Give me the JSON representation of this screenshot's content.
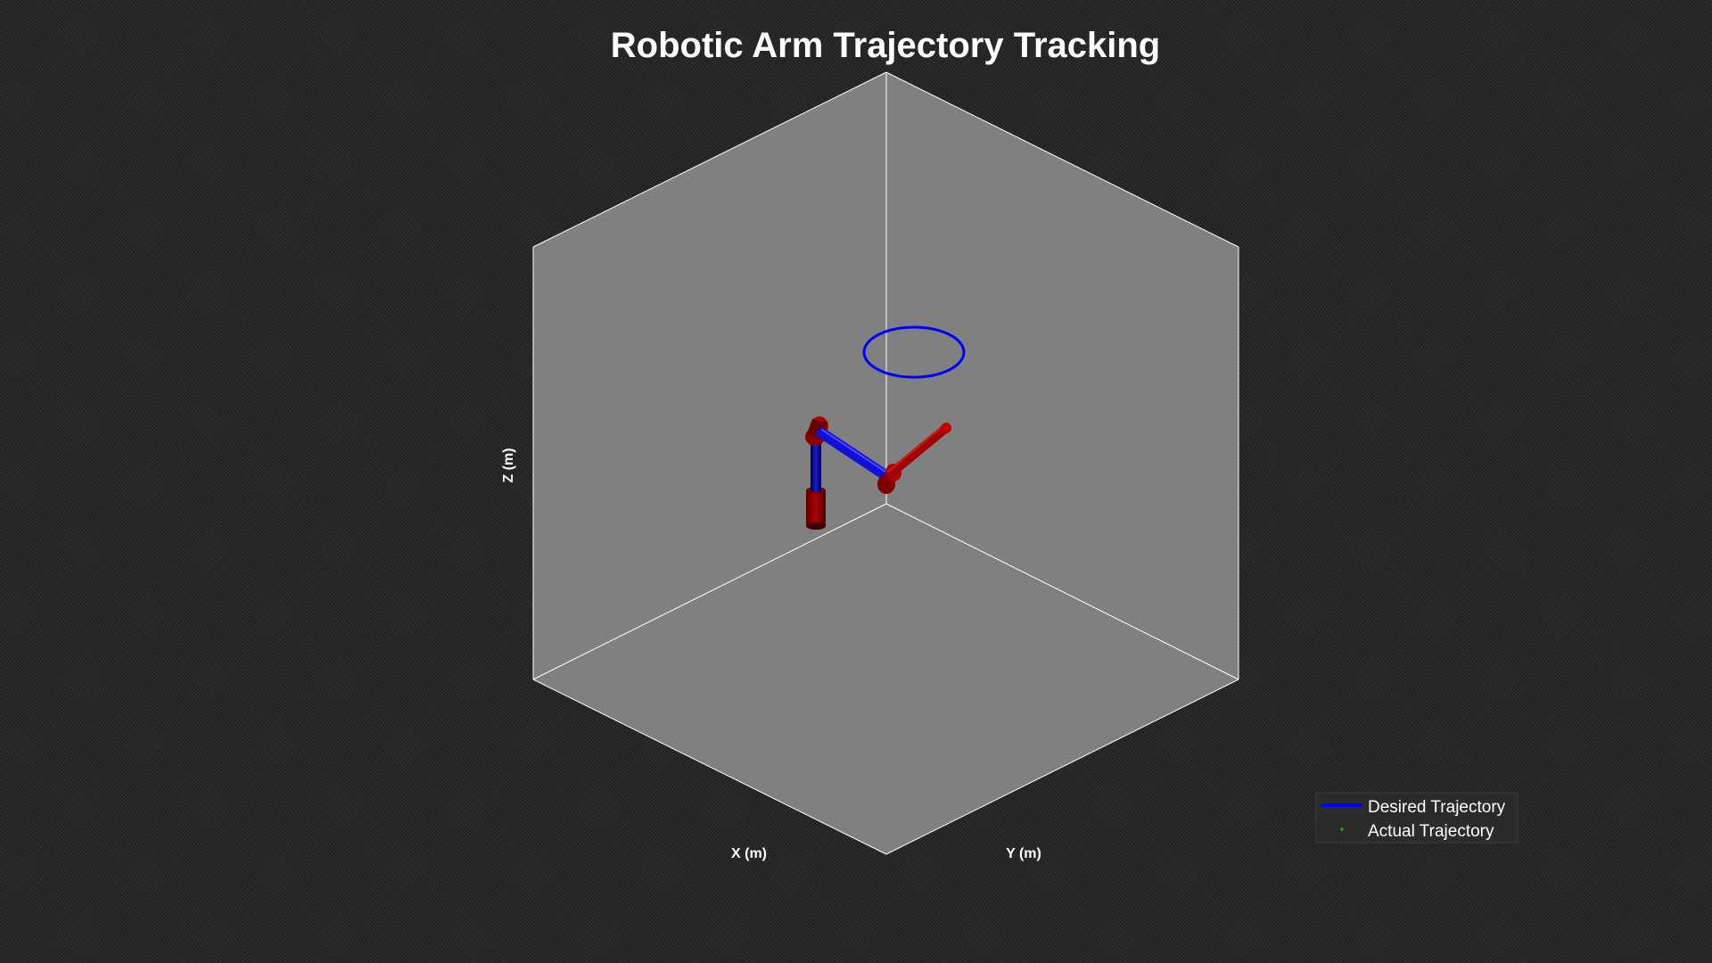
{
  "chart_data": {
    "type": "line",
    "title": "Robotic Arm Trajectory Tracking",
    "xlabel": "X (m)",
    "ylabel": "Y (m)",
    "zlabel": "Z (m)",
    "grid": false,
    "legend_position": "bottom-right",
    "series": [
      {
        "name": "Desired Trajectory",
        "style": "solid-line",
        "color": "#0000ff"
      },
      {
        "name": "Actual Trajectory",
        "style": "dots",
        "color": "#00cc00"
      }
    ],
    "colors": {
      "pane": "#808080",
      "edge": "#ffffff",
      "link_blue": "#1a1aff",
      "joint_red": "#cc0000"
    }
  }
}
